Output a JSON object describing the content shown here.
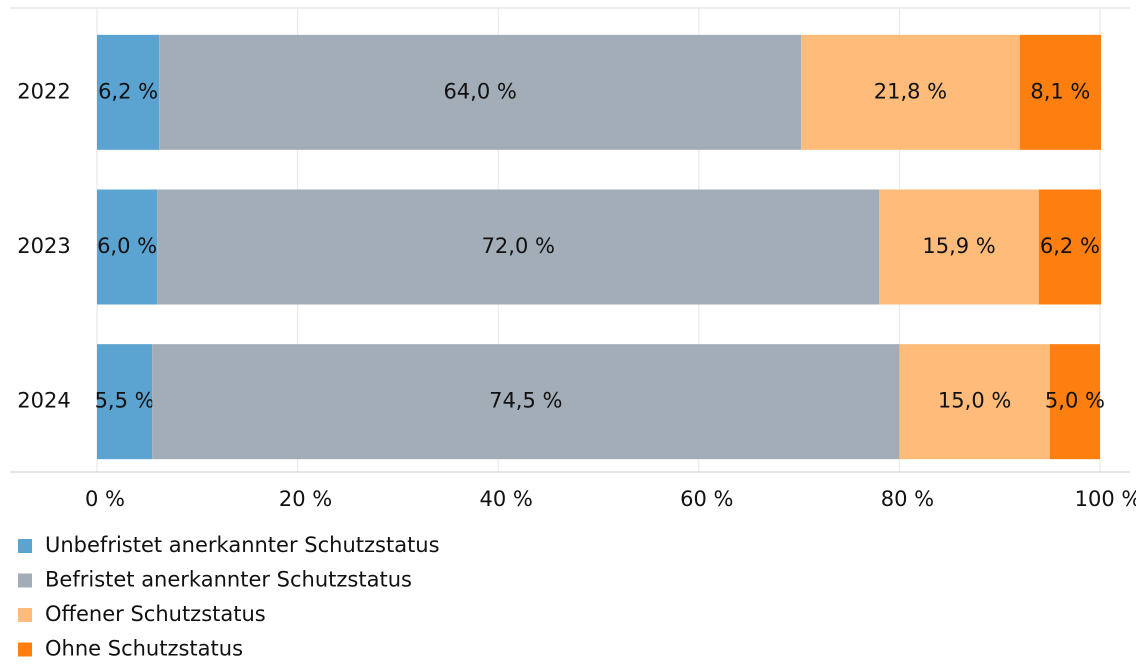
{
  "chart_data": {
    "type": "stacked-bar-horizontal",
    "categories": [
      "2022",
      "2023",
      "2024"
    ],
    "series": [
      {
        "name": "Unbefristet anerkannter Schutzstatus",
        "color": "#5ba3d1",
        "values": [
          6.2,
          6.0,
          5.5
        ],
        "value_labels": [
          "6,2 %",
          "6,0 %",
          "5,5 %"
        ]
      },
      {
        "name": "Befristet anerkannter Schutzstatus",
        "color": "#a3adb8",
        "values": [
          64.0,
          72.0,
          74.5
        ],
        "value_labels": [
          "64,0 %",
          "72,0 %",
          "74,5 %"
        ]
      },
      {
        "name": "Offener Schutzstatus",
        "color": "#ffbb7a",
        "values": [
          21.8,
          15.9,
          15.0
        ],
        "value_labels": [
          "21,8 %",
          "15,9 %",
          "15,0 %"
        ]
      },
      {
        "name": "Ohne Schutzstatus",
        "color": "#fd7f10",
        "values": [
          8.1,
          6.2,
          5.0
        ],
        "value_labels": [
          "8,1 %",
          "6,2 %",
          "5,0 %"
        ]
      }
    ],
    "xlim": [
      0,
      100
    ],
    "xticks": [
      {
        "value": 0,
        "label": "0 %"
      },
      {
        "value": 20,
        "label": "20 %"
      },
      {
        "value": 40,
        "label": "40 %"
      },
      {
        "value": 60,
        "label": "60 %"
      },
      {
        "value": 80,
        "label": "80 %"
      },
      {
        "value": 100,
        "label": "100 %"
      }
    ],
    "grid": true,
    "legend": "bottom-left"
  }
}
